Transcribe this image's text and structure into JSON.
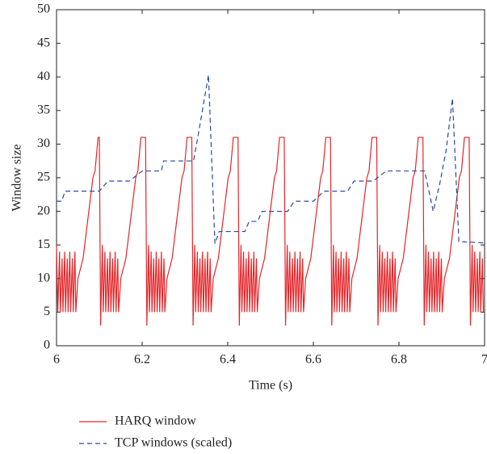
{
  "chart_data": {
    "type": "line",
    "xlabel": "Time (s)",
    "ylabel": "Window size",
    "xlim": [
      6,
      7
    ],
    "xticks": [
      6,
      6.2,
      6.4,
      6.6,
      6.8,
      7
    ],
    "ylim": [
      0,
      50
    ],
    "yticks": [
      0,
      5,
      10,
      15,
      20,
      25,
      30,
      35,
      40,
      45,
      50
    ],
    "series": [
      {
        "name": "HARQ window",
        "color": "#e3262a",
        "dash": "solid",
        "x": [
          6.0,
          6.003,
          6.007,
          6.009,
          6.013,
          6.015,
          6.019,
          6.021,
          6.025,
          6.027,
          6.031,
          6.033,
          6.037,
          6.039,
          6.043,
          6.045,
          6.05,
          6.062,
          6.085,
          6.09,
          6.097,
          6.1,
          6.103,
          6.107,
          6.109,
          6.113,
          6.115,
          6.119,
          6.121,
          6.125,
          6.127,
          6.131,
          6.133,
          6.137,
          6.139,
          6.143,
          6.145,
          6.15,
          6.162,
          6.185,
          6.19,
          6.197,
          6.208,
          6.211,
          6.215,
          6.217,
          6.221,
          6.223,
          6.227,
          6.229,
          6.233,
          6.235,
          6.239,
          6.241,
          6.245,
          6.247,
          6.251,
          6.253,
          6.258,
          6.27,
          6.293,
          6.298,
          6.305,
          6.316,
          6.319,
          6.323,
          6.325,
          6.329,
          6.331,
          6.335,
          6.337,
          6.341,
          6.343,
          6.347,
          6.349,
          6.353,
          6.355,
          6.359,
          6.361,
          6.366,
          6.378,
          6.401,
          6.406,
          6.413,
          6.424,
          6.427,
          6.431,
          6.433,
          6.437,
          6.439,
          6.443,
          6.445,
          6.449,
          6.451,
          6.455,
          6.457,
          6.461,
          6.463,
          6.467,
          6.469,
          6.474,
          6.486,
          6.509,
          6.514,
          6.521,
          6.532,
          6.535,
          6.539,
          6.541,
          6.545,
          6.547,
          6.551,
          6.553,
          6.557,
          6.559,
          6.563,
          6.565,
          6.569,
          6.571,
          6.575,
          6.577,
          6.582,
          6.594,
          6.617,
          6.622,
          6.629,
          6.64,
          6.643,
          6.647,
          6.649,
          6.653,
          6.655,
          6.659,
          6.661,
          6.665,
          6.667,
          6.671,
          6.673,
          6.677,
          6.679,
          6.683,
          6.685,
          6.69,
          6.702,
          6.725,
          6.73,
          6.737,
          6.748,
          6.751,
          6.755,
          6.757,
          6.761,
          6.763,
          6.767,
          6.769,
          6.773,
          6.775,
          6.779,
          6.781,
          6.785,
          6.787,
          6.791,
          6.793,
          6.798,
          6.81,
          6.833,
          6.838,
          6.845,
          6.856,
          6.859,
          6.863,
          6.865,
          6.869,
          6.871,
          6.875,
          6.877,
          6.881,
          6.883,
          6.887,
          6.889,
          6.893,
          6.895,
          6.899,
          6.901,
          6.906,
          6.918,
          6.941,
          6.946,
          6.953,
          6.964,
          6.967,
          6.971,
          6.973,
          6.977,
          6.979,
          6.983,
          6.985,
          6.989,
          6.991,
          6.995,
          6.997
        ],
        "values": [
          15,
          5,
          14,
          5,
          13,
          5,
          14,
          5,
          13,
          5,
          14,
          5,
          13,
          5,
          14,
          5,
          10,
          13,
          25,
          26,
          31,
          31,
          3,
          15,
          5,
          14,
          5,
          13,
          5,
          14,
          5,
          13,
          5,
          14,
          5,
          13,
          5,
          10,
          13,
          25,
          26,
          31,
          31,
          3,
          15,
          5,
          14,
          5,
          13,
          5,
          14,
          5,
          13,
          5,
          14,
          5,
          13,
          5,
          10,
          13,
          25,
          26,
          31,
          31,
          3,
          15,
          5,
          14,
          5,
          13,
          5,
          14,
          5,
          13,
          5,
          14,
          5,
          13,
          5,
          10,
          13,
          25,
          26,
          31,
          31,
          3,
          15,
          5,
          14,
          5,
          13,
          5,
          14,
          5,
          13,
          5,
          14,
          5,
          13,
          5,
          10,
          13,
          25,
          26,
          31,
          31,
          3,
          15,
          5,
          14,
          5,
          13,
          5,
          14,
          5,
          13,
          5,
          14,
          5,
          13,
          5,
          10,
          13,
          25,
          26,
          31,
          31,
          3,
          15,
          5,
          14,
          5,
          13,
          5,
          14,
          5,
          13,
          5,
          14,
          5,
          13,
          5,
          10,
          13,
          25,
          26,
          31,
          31,
          3,
          15,
          5,
          14,
          5,
          13,
          5,
          14,
          5,
          13,
          5,
          14,
          5,
          13,
          5,
          10,
          13,
          25,
          26,
          31,
          31,
          3,
          15,
          5,
          14,
          5,
          13,
          5,
          14,
          5,
          13,
          5,
          14,
          5,
          13,
          5,
          10,
          13,
          25,
          26,
          31,
          31,
          3,
          15,
          5,
          14,
          5,
          13,
          5,
          14,
          5,
          13,
          5
        ]
      },
      {
        "name": "TCP windows (scaled)",
        "color": "#2a4aa0",
        "dash": "dashed",
        "x": [
          6.0,
          6.012,
          6.02,
          6.1,
          6.12,
          6.17,
          6.2,
          6.245,
          6.25,
          6.32,
          6.33,
          6.355,
          6.37,
          6.38,
          6.44,
          6.45,
          6.47,
          6.48,
          6.54,
          6.555,
          6.6,
          6.625,
          6.68,
          6.695,
          6.74,
          6.77,
          6.86,
          6.88,
          6.895,
          6.91,
          6.925,
          6.94,
          7.0
        ],
        "values": [
          21.5,
          21.5,
          23,
          23,
          24.5,
          24.5,
          26,
          26,
          27.5,
          27.5,
          31,
          40.3,
          15.2,
          17,
          17,
          18.5,
          18.5,
          20,
          20,
          21.5,
          21.5,
          23,
          23,
          24.5,
          24.5,
          26,
          26,
          20,
          24,
          29,
          36.8,
          15.5,
          15.3
        ]
      }
    ]
  }
}
